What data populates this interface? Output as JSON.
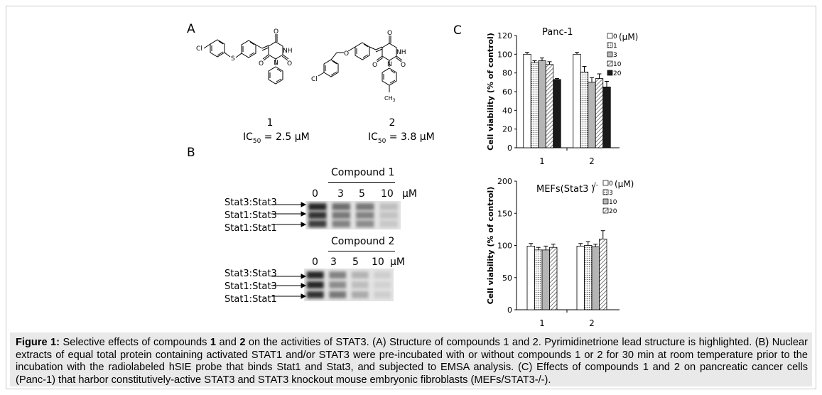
{
  "panels": {
    "a": "A",
    "b": "B",
    "c": "C"
  },
  "compounds": [
    {
      "number": "1",
      "ic50_prefix": "IC",
      "ic50_sub": "50",
      "ic50_value": " = 2.5 μM",
      "atoms": {
        "cl": "Cl",
        "s": "S",
        "nh": "NH",
        "n": "N",
        "o": "O"
      }
    },
    {
      "number": "2",
      "ic50_prefix": "IC",
      "ic50_sub": "50",
      "ic50_value": " = 3.8 μM",
      "atoms": {
        "cl": "Cl",
        "o_ether": "O",
        "nh": "NH",
        "n": "N",
        "o": "O",
        "ch3": "CH",
        "ch3_sub": "3"
      }
    }
  ],
  "gels": [
    {
      "title": "Compound 1",
      "lanes": [
        "0",
        "3",
        "5",
        "10"
      ],
      "unit": "μM",
      "bands": [
        "Stat3:Stat3",
        "Stat1:Stat3",
        "Stat1:Stat1"
      ],
      "intensity": [
        [
          0.95,
          0.9,
          0.85
        ],
        [
          0.6,
          0.55,
          0.5
        ],
        [
          0.55,
          0.5,
          0.45
        ],
        [
          0.2,
          0.18,
          0.15
        ]
      ]
    },
    {
      "title": "Compound 2",
      "lanes": [
        "0",
        "3",
        "5",
        "10"
      ],
      "unit": "μM",
      "bands": [
        "Stat3:Stat3",
        "Stat1:Stat3",
        "Stat1:Stat1"
      ],
      "intensity": [
        [
          0.95,
          0.95,
          0.9
        ],
        [
          0.5,
          0.45,
          0.55
        ],
        [
          0.25,
          0.2,
          0.3
        ],
        [
          0.12,
          0.1,
          0.12
        ]
      ]
    }
  ],
  "chart_data": [
    {
      "type": "bar",
      "title": "Panc-1",
      "ylabel": "Cell viability (% of control)",
      "xlabel": "",
      "categories": [
        "1",
        "2"
      ],
      "yticks": [
        "0",
        "20",
        "40",
        "60",
        "80",
        "100",
        "120"
      ],
      "ylim": [
        0,
        120
      ],
      "legend_unit": "(μM)",
      "legend_position": "top-right",
      "series": [
        {
          "name": "0",
          "values": [
            100,
            100
          ],
          "errors": [
            2,
            2
          ],
          "fill": "white"
        },
        {
          "name": "1",
          "values": [
            91,
            81
          ],
          "errors": [
            2,
            6
          ],
          "fill": "dots"
        },
        {
          "name": "3",
          "values": [
            93,
            70
          ],
          "errors": [
            3,
            5
          ],
          "fill": "gray"
        },
        {
          "name": "10",
          "values": [
            89,
            74
          ],
          "errors": [
            3,
            5
          ],
          "fill": "hatch"
        },
        {
          "name": "20",
          "values": [
            73,
            65
          ],
          "errors": [
            1,
            6
          ],
          "fill": "black"
        }
      ]
    },
    {
      "type": "bar",
      "title": "MEFs(Stat3",
      "title_sup": "-/-",
      "title_suffix": ")",
      "ylabel": "Cell viability (% of control)",
      "xlabel": "",
      "categories": [
        "1",
        "2"
      ],
      "yticks": [
        "0",
        "50",
        "100",
        "150",
        "200"
      ],
      "ylim": [
        0,
        200
      ],
      "legend_unit": "(μM)",
      "legend_position": "top-right",
      "series": [
        {
          "name": "0",
          "values": [
            99,
            99
          ],
          "errors": [
            4,
            4
          ],
          "fill": "white"
        },
        {
          "name": "3",
          "values": [
            93,
            100
          ],
          "errors": [
            4,
            6
          ],
          "fill": "dots"
        },
        {
          "name": "10",
          "values": [
            93,
            98
          ],
          "errors": [
            6,
            4
          ],
          "fill": "gray"
        },
        {
          "name": "20",
          "values": [
            97,
            110
          ],
          "errors": [
            5,
            13
          ],
          "fill": "hatch"
        }
      ]
    }
  ],
  "caption": {
    "lead": "Figure 1:",
    "p1": " Selective effects of compounds ",
    "b1": "1",
    "p2": " and ",
    "b2": "2",
    "p3": " on the activities of STAT3. (A) Structure of compounds 1 and 2. Pyrimidinetrione lead structure is highlighted. (B) Nuclear extracts of equal total protein containing activated STAT1 and/or STAT3 were pre-incubated with or without compounds 1 or 2 for 30 min at room temperature prior to the incubation with the radiolabeled hSIE probe that binds Stat1 and Stat3, and subjected to EMSA analysis. (C) Effects of compounds 1 and 2 on pancreatic cancer cells (Panc-1) that harbor constitutively-active STAT3 and STAT3 knockout mouse embryonic fibroblasts (MEFs/STAT3-/-)."
  }
}
